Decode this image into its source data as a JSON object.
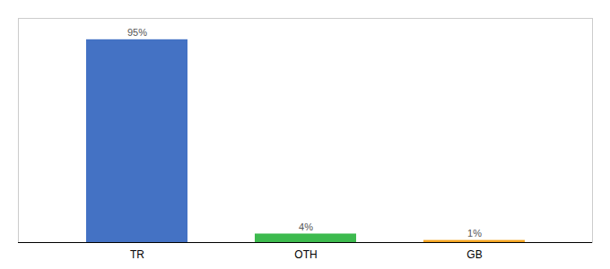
{
  "chart_data": {
    "type": "bar",
    "categories": [
      "TR",
      "OTH",
      "GB"
    ],
    "values": [
      95,
      4,
      1
    ],
    "value_labels": [
      "95%",
      "4%",
      "1%"
    ],
    "colors": [
      "#4472c4",
      "#3dba4e",
      "#f5a623"
    ],
    "ylim": [
      0,
      105
    ],
    "data_labels": true,
    "tick_labels": "x"
  }
}
